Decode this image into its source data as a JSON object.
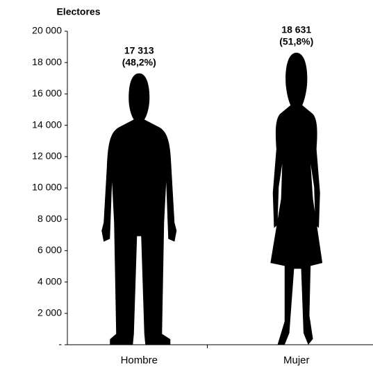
{
  "chart_data": {
    "type": "pictogram",
    "y_label": "Electores",
    "categories": [
      "Hombre",
      "Mujer"
    ],
    "values": [
      17313,
      18631
    ],
    "value_labels": [
      "17 313",
      "18 631"
    ],
    "shares": {
      "values": [
        48.2,
        51.8
      ],
      "value_labels": [
        "(48,2%)",
        "(51,8%)"
      ]
    },
    "color": "#000000",
    "ylim": [
      0,
      20000
    ],
    "yticks": [
      {
        "value": 0,
        "label": "-"
      },
      {
        "value": 2000,
        "label": "2 000"
      },
      {
        "value": 4000,
        "label": "4 000"
      },
      {
        "value": 6000,
        "label": "6 000"
      },
      {
        "value": 8000,
        "label": "8 000"
      },
      {
        "value": 10000,
        "label": "10 000"
      },
      {
        "value": 12000,
        "label": "12 000"
      },
      {
        "value": 14000,
        "label": "14 000"
      },
      {
        "value": 16000,
        "label": "16 000"
      },
      {
        "value": 18000,
        "label": "18 000"
      },
      {
        "value": 20000,
        "label": "20 000"
      }
    ]
  }
}
